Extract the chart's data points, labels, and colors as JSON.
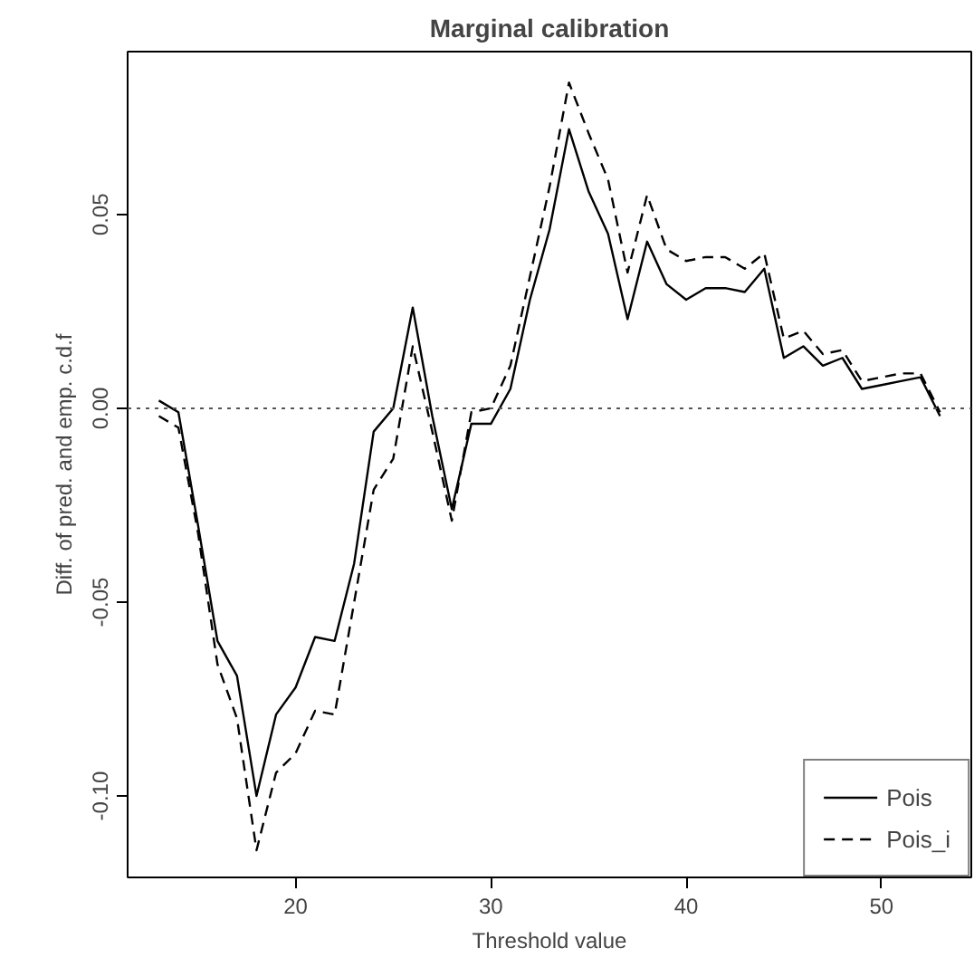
{
  "chart_data": {
    "type": "line",
    "title": "Marginal calibration",
    "xlabel": "Threshold value",
    "ylabel": "Diff. of pred. and emp. c.d.f",
    "x": [
      13,
      14,
      15,
      16,
      17,
      18,
      19,
      20,
      21,
      22,
      23,
      24,
      25,
      26,
      27,
      28,
      29,
      30,
      31,
      32,
      33,
      34,
      35,
      36,
      37,
      38,
      39,
      40,
      41,
      42,
      43,
      44,
      45,
      46,
      47,
      48,
      49,
      50,
      51,
      52,
      53
    ],
    "series": [
      {
        "name": "Pois",
        "color": "#000000",
        "line_style": "solid",
        "values": [
          0.002,
          -0.001,
          -0.03,
          -0.06,
          -0.069,
          -0.1,
          -0.079,
          -0.072,
          -0.059,
          -0.06,
          -0.04,
          -0.006,
          0.0,
          0.026,
          -0.002,
          -0.026,
          -0.004,
          -0.004,
          0.005,
          0.028,
          0.046,
          0.072,
          0.056,
          0.045,
          0.023,
          0.043,
          0.032,
          0.028,
          0.031,
          0.031,
          0.03,
          0.036,
          0.013,
          0.016,
          0.011,
          0.013,
          0.005,
          0.006,
          0.007,
          0.008,
          -0.002
        ]
      },
      {
        "name": "Pois_i",
        "color": "#000000",
        "line_style": "dashed",
        "values": [
          -0.002,
          -0.005,
          -0.032,
          -0.066,
          -0.08,
          -0.114,
          -0.094,
          -0.089,
          -0.078,
          -0.079,
          -0.05,
          -0.021,
          -0.013,
          0.016,
          -0.006,
          -0.029,
          -0.001,
          0.0,
          0.011,
          0.034,
          0.057,
          0.084,
          0.071,
          0.059,
          0.035,
          0.055,
          0.041,
          0.038,
          0.039,
          0.039,
          0.036,
          0.04,
          0.018,
          0.02,
          0.014,
          0.015,
          0.007,
          0.008,
          0.009,
          0.009,
          -0.001
        ]
      }
    ],
    "xlim": [
      11.4,
      54.6
    ],
    "ylim": [
      -0.121,
      0.092
    ],
    "xticks": [
      20,
      30,
      40,
      50
    ],
    "yticks": [
      {
        "value": -0.1,
        "label": "-0.10"
      },
      {
        "value": -0.05,
        "label": "-0.05"
      },
      {
        "value": 0,
        "label": "0.00"
      },
      {
        "value": 0.05,
        "label": "0.05"
      }
    ],
    "ref_lines": [
      {
        "axis": "y",
        "value": 0,
        "label": null,
        "color": "#555555",
        "line_style": "dotted"
      }
    ],
    "legend": "bottom right",
    "grid": false
  }
}
